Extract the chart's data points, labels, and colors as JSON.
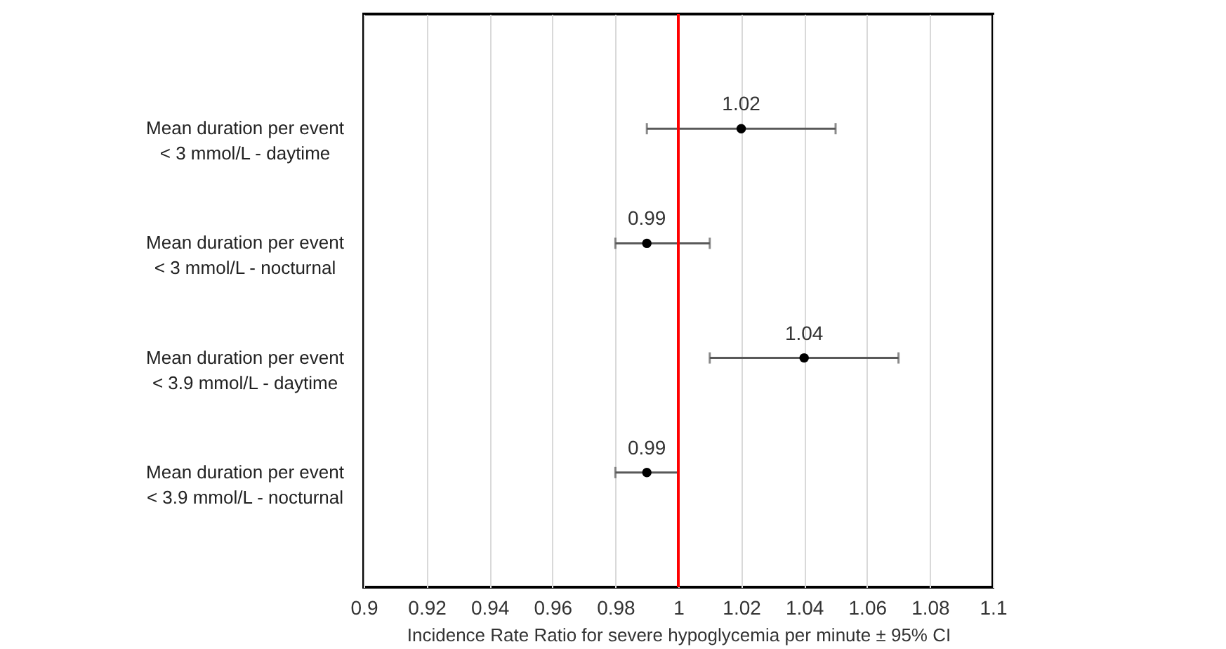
{
  "chart_data": {
    "type": "scatter",
    "orientation": "horizontal",
    "xlabel": "Incidence Rate Ratio for severe hypoglycemia per minute ± 95% CI",
    "categories": [
      "Mean duration per event\n< 3 mmol/L - daytime",
      "Mean duration per event\n< 3 mmol/L - nocturnal",
      "Mean duration per event\n< 3.9 mmol/L - daytime",
      "Mean duration per event\n< 3.9 mmol/L - nocturnal"
    ],
    "values": [
      1.02,
      0.99,
      1.04,
      0.99
    ],
    "errors": [
      [
        0.99,
        1.05
      ],
      [
        0.98,
        1.01
      ],
      [
        1.01,
        1.07
      ],
      [
        0.98,
        1.0
      ]
    ],
    "color": "#000000",
    "xlim": [
      0.9,
      1.1
    ],
    "xticks": [
      0.9,
      0.92,
      0.94,
      0.96,
      0.98,
      1,
      1.02,
      1.04,
      1.06,
      1.08,
      1.1
    ],
    "grid": "x",
    "marker": "circle",
    "data_labels": true,
    "ref_lines": [
      {
        "axis": "x",
        "value": 1,
        "color": "#ff0000"
      }
    ]
  }
}
